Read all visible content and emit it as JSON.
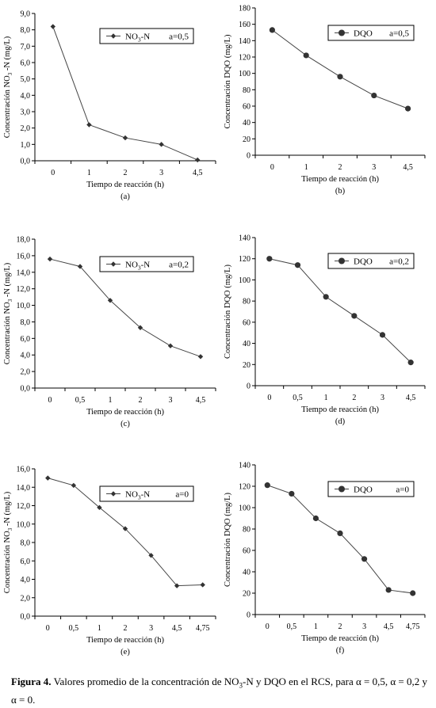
{
  "chart_data": [
    {
      "type": "line",
      "panel_label": "(a)",
      "categories": [
        "0",
        "1",
        "2",
        "3",
        "4,5"
      ],
      "ylim": [
        0,
        9
      ],
      "yticks": [
        "0,0",
        "1,0",
        "2,0",
        "3,0",
        "4,0",
        "5,0",
        "6,0",
        "7,0",
        "8,0",
        "9,0"
      ],
      "xlabel": "Tiempo de reacción (h)",
      "ylabel_main": "Concentración NO",
      "ylabel_sub": "3",
      "ylabel_rest": " -N (mg/L)",
      "legend_title_main": "NO",
      "legend_title_sub": "3",
      "legend_title_rest": "-N",
      "legend_param": "a=0,5",
      "marker": "diamond",
      "series": [
        {
          "values": [
            8.2,
            2.2,
            1.4,
            1.0,
            0.05
          ]
        }
      ]
    },
    {
      "type": "line",
      "panel_label": "(b)",
      "categories": [
        "0",
        "1",
        "2",
        "3",
        "4,5"
      ],
      "ylim": [
        0,
        180
      ],
      "yticks": [
        "0",
        "20",
        "40",
        "60",
        "80",
        "100",
        "120",
        "140",
        "160",
        "180"
      ],
      "xlabel": "Tiempo de reacción (h)",
      "ylabel_main": "Concentración DQO (mg/L)",
      "ylabel_sub": "",
      "ylabel_rest": "",
      "legend_title_main": "DQO",
      "legend_title_sub": "",
      "legend_title_rest": "",
      "legend_param": "a=0,5",
      "marker": "circle",
      "series": [
        {
          "values": [
            153,
            122,
            96,
            73,
            57
          ]
        }
      ]
    },
    {
      "type": "line",
      "panel_label": "(c)",
      "categories": [
        "0",
        "0,5",
        "1",
        "2",
        "3",
        "4,5"
      ],
      "ylim": [
        0,
        18
      ],
      "yticks": [
        "0,0",
        "2,0",
        "4,0",
        "6,0",
        "8,0",
        "10,0",
        "12,0",
        "14,0",
        "16,0",
        "18,0"
      ],
      "xlabel": "Tiempo de reacción (h)",
      "ylabel_main": "Concentración NO",
      "ylabel_sub": "3",
      "ylabel_rest": " -N (mg/L)",
      "legend_title_main": "NO",
      "legend_title_sub": "3",
      "legend_title_rest": "-N",
      "legend_param": "a=0,2",
      "marker": "diamond",
      "series": [
        {
          "values": [
            15.6,
            14.7,
            10.6,
            7.3,
            5.1,
            3.8
          ]
        }
      ]
    },
    {
      "type": "line",
      "panel_label": "(d)",
      "categories": [
        "0",
        "0,5",
        "1",
        "2",
        "3",
        "4,5"
      ],
      "ylim": [
        0,
        140
      ],
      "yticks": [
        "0",
        "20",
        "40",
        "60",
        "80",
        "100",
        "120",
        "140"
      ],
      "xlabel": "Tiempo de reacción (h)",
      "ylabel_main": "Concentración DQO (mg/L)",
      "ylabel_sub": "",
      "ylabel_rest": "",
      "legend_title_main": "DQO",
      "legend_title_sub": "",
      "legend_title_rest": "",
      "legend_param": "a=0,2",
      "marker": "circle",
      "series": [
        {
          "values": [
            120,
            114,
            84,
            66,
            48,
            22
          ]
        }
      ]
    },
    {
      "type": "line",
      "panel_label": "(e)",
      "categories": [
        "0",
        "0,5",
        "1",
        "2",
        "3",
        "4,5",
        "4,75"
      ],
      "ylim": [
        0,
        16
      ],
      "yticks": [
        "0,0",
        "2,0",
        "4,0",
        "6,0",
        "8,0",
        "10,0",
        "12,0",
        "14,0",
        "16,0"
      ],
      "xlabel": "Tiempo de reacción (h)",
      "ylabel_main": "Concentración NO",
      "ylabel_sub": "3",
      "ylabel_rest": " -N (mg/L)",
      "legend_title_main": "NO",
      "legend_title_sub": "3",
      "legend_title_rest": "-N",
      "legend_param": "a=0",
      "marker": "diamond",
      "series": [
        {
          "values": [
            15.0,
            14.2,
            11.8,
            9.5,
            6.6,
            3.3,
            3.4
          ]
        }
      ]
    },
    {
      "type": "line",
      "panel_label": "(f)",
      "categories": [
        "0",
        "0,5",
        "1",
        "2",
        "3",
        "4,5",
        "4,75"
      ],
      "ylim": [
        0,
        140
      ],
      "yticks": [
        "0",
        "20",
        "40",
        "60",
        "80",
        "100",
        "120",
        "140"
      ],
      "xlabel": "Tiempo de reacción (h)",
      "ylabel_main": "Concentración DQO (mg/L)",
      "ylabel_sub": "",
      "ylabel_rest": "",
      "legend_title_main": "DQO",
      "legend_title_sub": "",
      "legend_title_rest": "",
      "legend_param": "a=0",
      "marker": "circle",
      "series": [
        {
          "values": [
            121,
            113,
            90,
            76,
            52,
            23,
            20
          ]
        }
      ]
    }
  ],
  "caption": {
    "label": "Figura 4.",
    "text_a": " Valores promedio de la concentración de NO",
    "text_sub": "3",
    "text_b": "-N y DQO en el RCS, para α = 0,5, α = 0,2 y α = 0."
  },
  "colors": {
    "line": "#444444",
    "marker": "#333333",
    "axis": "#000000"
  }
}
